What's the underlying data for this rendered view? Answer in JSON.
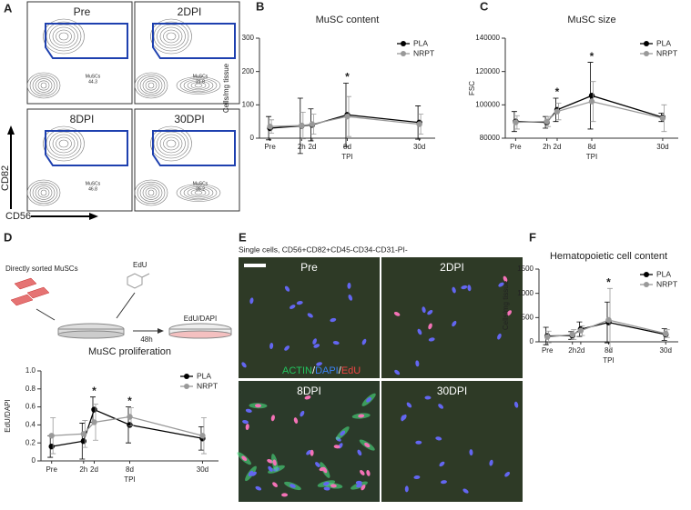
{
  "panels": {
    "A": {
      "label": "A",
      "y_axis": "CD82",
      "x_axis": "CD56",
      "plots": [
        {
          "title": "Pre",
          "gate": "MuSCs",
          "value": 44.3
        },
        {
          "title": "2DPI",
          "gate": "MuSCs",
          "value": 21.8
        },
        {
          "title": "8DPI",
          "gate": "MuSCs",
          "value": 46.8
        },
        {
          "title": "30DPI",
          "gate": "MuSCs",
          "value": 26.2
        }
      ]
    },
    "B": {
      "label": "B"
    },
    "C": {
      "label": "C"
    },
    "D": {
      "label": "D",
      "source": "Directly sorted MuSCs",
      "reagent": "EdU",
      "time": "48h",
      "stain": "EdU/DAPI"
    },
    "E": {
      "label": "E",
      "caption": "Single cells, CD56+CD82+CD45-CD34-CD31-PI-",
      "images": [
        "Pre",
        "2DPI",
        "8DPI",
        "30DPI"
      ],
      "stain_legend": [
        {
          "text": "ACTIN",
          "color": "#22c55e"
        },
        {
          "text": "/",
          "color": "#ffffff"
        },
        {
          "text": "DAPI",
          "color": "#3b82f6"
        },
        {
          "text": "/",
          "color": "#ffffff"
        },
        {
          "text": "EdU",
          "color": "#ef4444"
        }
      ]
    },
    "F": {
      "label": "F"
    }
  },
  "chart_data": [
    {
      "type": "line",
      "title": "MuSC content",
      "xlabel": "TPI",
      "ylabel": "Cells/mg tissue",
      "categories": [
        "Pre",
        "2h",
        "2d",
        "8d",
        "30d"
      ],
      "series": [
        {
          "name": "PLA",
          "color": "#000000",
          "values": [
            30,
            37,
            40,
            70,
            47
          ],
          "errors": [
            35,
            83,
            48,
            95,
            50
          ]
        },
        {
          "name": "NRPT",
          "color": "#999999",
          "values": [
            35,
            38,
            42,
            65,
            42
          ],
          "errors": [
            20,
            40,
            30,
            60,
            30
          ]
        }
      ],
      "annotations": [
        null,
        null,
        null,
        "*",
        null
      ],
      "ylim": [
        0,
        300
      ],
      "yticks": [
        0,
        100,
        200,
        300
      ],
      "legend": "upper right"
    },
    {
      "type": "line",
      "title": "MuSC size",
      "xlabel": "TPI",
      "ylabel": "FSC",
      "categories": [
        "Pre",
        "2h",
        "2d",
        "8d",
        "30d"
      ],
      "series": [
        {
          "name": "PLA",
          "color": "#000000",
          "values": [
            90000,
            89500,
            97000,
            105500,
            92500
          ],
          "errors": [
            6000,
            3500,
            7000,
            20000,
            2500
          ]
        },
        {
          "name": "NRPT",
          "color": "#999999",
          "values": [
            89500,
            90000,
            96000,
            102000,
            92000
          ],
          "errors": [
            4000,
            3000,
            5000,
            12000,
            8000
          ]
        }
      ],
      "annotations": [
        null,
        null,
        "*",
        "*",
        null
      ],
      "ylim": [
        80000,
        140000
      ],
      "yticks": [
        80000,
        100000,
        120000,
        140000
      ],
      "legend": "upper right"
    },
    {
      "type": "line",
      "title": "MuSC proliferation",
      "xlabel": "TPI",
      "ylabel": "EdU/DAPI",
      "categories": [
        "Pre",
        "2h",
        "2d",
        "8d",
        "30d"
      ],
      "series": [
        {
          "name": "PLA",
          "color": "#000000",
          "values": [
            0.16,
            0.22,
            0.57,
            0.4,
            0.25
          ],
          "errors": [
            0.12,
            0.2,
            0.14,
            0.2,
            0.13
          ]
        },
        {
          "name": "NRPT",
          "color": "#999999",
          "values": [
            0.28,
            0.3,
            0.43,
            0.49,
            0.28
          ],
          "errors": [
            0.2,
            0.15,
            0.2,
            0.1,
            0.2
          ]
        }
      ],
      "annotations": [
        null,
        null,
        "*",
        "*",
        null
      ],
      "ylim": [
        0,
        1
      ],
      "yticks": [
        0,
        0.2,
        0.4,
        0.6,
        0.8,
        {
          "value": 1,
          "label": "1.0"
        }
      ],
      "legend": "upper right"
    },
    {
      "type": "line",
      "title": "Hematopoietic cell content",
      "xlabel": "TPI",
      "ylabel": "Cells/mg tissue",
      "categories": [
        "Pre",
        "2h",
        "2d",
        "8d",
        "30d"
      ],
      "series": [
        {
          "name": "PLA",
          "color": "#000000",
          "values": [
            120,
            130,
            260,
            400,
            150
          ],
          "errors": [
            180,
            80,
            150,
            420,
            120
          ]
        },
        {
          "name": "NRPT",
          "color": "#999999",
          "values": [
            100,
            150,
            230,
            450,
            170
          ],
          "errors": [
            120,
            100,
            100,
            650,
            80
          ]
        }
      ],
      "annotations": [
        null,
        null,
        null,
        "*",
        null
      ],
      "ylim": [
        0,
        1500
      ],
      "yticks": [
        0,
        500,
        1000,
        1500
      ],
      "legend": "upper right"
    }
  ]
}
